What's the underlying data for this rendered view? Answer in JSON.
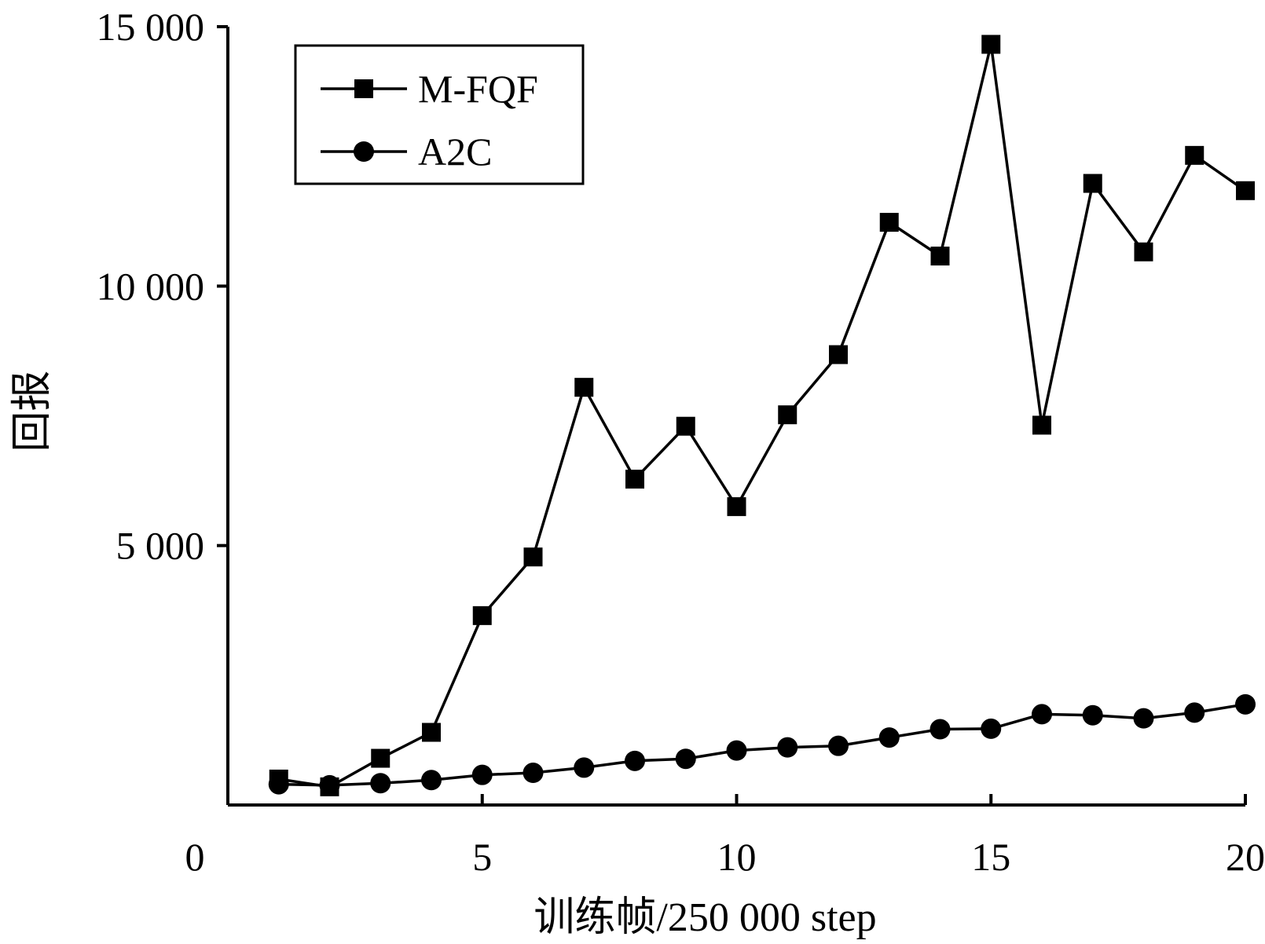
{
  "chart_data": {
    "type": "line",
    "xlabel": "训练帧/250 000 step",
    "ylabel": "回报",
    "xlim": [
      0,
      20
    ],
    "ylim": [
      0,
      15000
    ],
    "x_origin_label": "0",
    "x_ticks": [
      5,
      10,
      15,
      20
    ],
    "x_tick_labels": [
      "5",
      "10",
      "15",
      "20"
    ],
    "y_ticks": [
      5000,
      10000,
      15000
    ],
    "y_tick_labels": [
      "5 000",
      "10 000",
      "15 000"
    ],
    "grid": false,
    "legend_position": "top-left",
    "x": [
      1,
      2,
      3,
      4,
      5,
      6,
      7,
      8,
      9,
      10,
      11,
      12,
      13,
      14,
      15,
      16,
      17,
      18,
      19,
      20
    ],
    "series": [
      {
        "name": "M-FQF",
        "marker": "square",
        "color": "#000000",
        "values": [
          500,
          350,
          900,
          1400,
          3650,
          4780,
          8050,
          6280,
          7300,
          5750,
          7520,
          8680,
          11230,
          10580,
          14660,
          7320,
          11980,
          10660,
          12520,
          11840
        ]
      },
      {
        "name": "A2C",
        "marker": "circle",
        "color": "#000000",
        "values": [
          400,
          380,
          420,
          480,
          580,
          620,
          720,
          850,
          890,
          1050,
          1110,
          1140,
          1300,
          1460,
          1470,
          1750,
          1730,
          1670,
          1780,
          1940
        ]
      }
    ]
  }
}
